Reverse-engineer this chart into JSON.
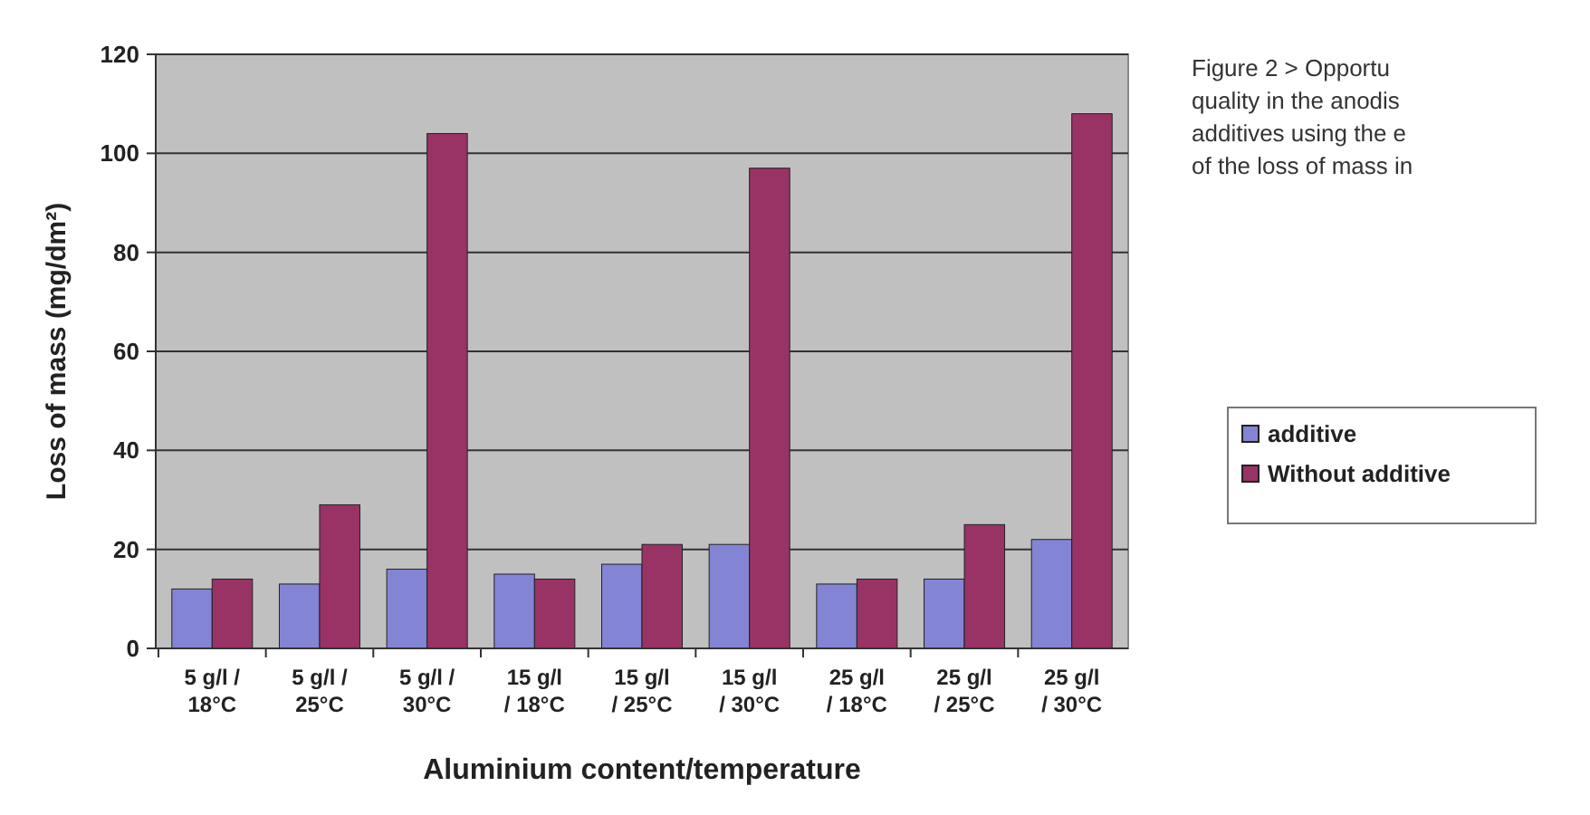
{
  "chart_data": {
    "type": "bar",
    "xlabel": "Aluminium content/temperature",
    "ylabel": "Loss of mass (mg/dm²)",
    "categories": [
      "5 g/l /\n18°C",
      "5 g/l /\n25°C",
      "5 g/l /\n30°C",
      "15 g/l\n/ 18°C",
      "15 g/l\n/ 25°C",
      "15 g/l\n/ 30°C",
      "25 g/l\n/ 18°C",
      "25 g/l\n/ 25°C",
      "25 g/l\n/ 30°C"
    ],
    "series": [
      {
        "name": "additive",
        "color": "#8484d4",
        "values": [
          12,
          13,
          16,
          15,
          17,
          21,
          13,
          14,
          22
        ]
      },
      {
        "name": "Without additive",
        "color": "#993366",
        "values": [
          14,
          29,
          104,
          14,
          21,
          97,
          14,
          25,
          108
        ]
      }
    ],
    "ylim": [
      0,
      120
    ],
    "yticks": [
      0,
      20,
      40,
      60,
      80,
      100,
      120
    ],
    "grid": "y",
    "legend": "right",
    "annotations": [
      "Figure 2 > Opportu",
      "quality in the anodis",
      "additives using the e",
      "of the loss of mass in"
    ]
  }
}
